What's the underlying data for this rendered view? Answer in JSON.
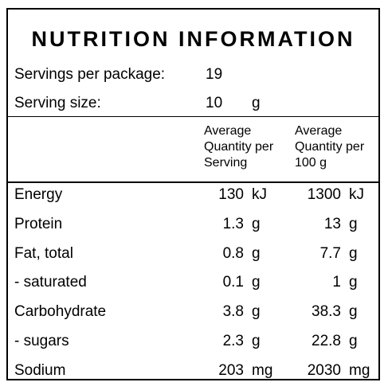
{
  "title": "NUTRITION INFORMATION",
  "servings": {
    "label": "Servings per package:",
    "value": "19"
  },
  "serving_size": {
    "label": "Serving size:",
    "value": "10",
    "unit": "g"
  },
  "headers": {
    "per_serving": "Average\nQuantity per\nServing",
    "per_100g": "Average\nQuantity per\n100 g"
  },
  "rows": [
    {
      "name": "Energy",
      "serving": "130",
      "serving_unit": "kJ",
      "per100": "1300",
      "per100_unit": "kJ"
    },
    {
      "name": "Protein",
      "serving": "1.3",
      "serving_unit": "g",
      "per100": "13",
      "per100_unit": "g"
    },
    {
      "name": "Fat, total",
      "serving": "0.8",
      "serving_unit": "g",
      "per100": "7.7",
      "per100_unit": "g"
    },
    {
      "name": "- saturated",
      "serving": "0.1",
      "serving_unit": "g",
      "per100": "1",
      "per100_unit": "g"
    },
    {
      "name": "Carbohydrate",
      "serving": "3.8",
      "serving_unit": "g",
      "per100": "38.3",
      "per100_unit": "g"
    },
    {
      "name": "- sugars",
      "serving": "2.3",
      "serving_unit": "g",
      "per100": "22.8",
      "per100_unit": "g"
    },
    {
      "name": "Sodium",
      "serving": "203",
      "serving_unit": "mg",
      "per100": "2030",
      "per100_unit": "mg"
    }
  ]
}
